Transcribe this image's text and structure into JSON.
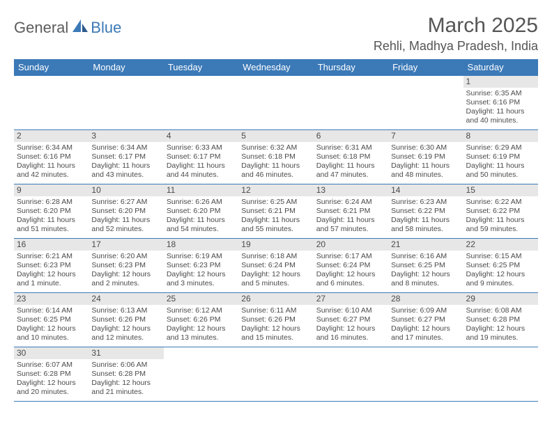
{
  "logo": {
    "part1": "General",
    "part2": "Blue"
  },
  "title": "March 2025",
  "location": "Rehli, Madhya Pradesh, India",
  "colors": {
    "header_bg": "#3b79b7",
    "header_text": "#ffffff",
    "border": "#3b79b7",
    "daynum_bg": "#e7e7e7",
    "body_text": "#4a4a4a",
    "title_text": "#555555"
  },
  "weekdays": [
    "Sunday",
    "Monday",
    "Tuesday",
    "Wednesday",
    "Thursday",
    "Friday",
    "Saturday"
  ],
  "weeks": [
    [
      {
        "n": "",
        "sr": "",
        "ss": "",
        "dl": ""
      },
      {
        "n": "",
        "sr": "",
        "ss": "",
        "dl": ""
      },
      {
        "n": "",
        "sr": "",
        "ss": "",
        "dl": ""
      },
      {
        "n": "",
        "sr": "",
        "ss": "",
        "dl": ""
      },
      {
        "n": "",
        "sr": "",
        "ss": "",
        "dl": ""
      },
      {
        "n": "",
        "sr": "",
        "ss": "",
        "dl": ""
      },
      {
        "n": "1",
        "sr": "Sunrise: 6:35 AM",
        "ss": "Sunset: 6:16 PM",
        "dl": "Daylight: 11 hours and 40 minutes."
      }
    ],
    [
      {
        "n": "2",
        "sr": "Sunrise: 6:34 AM",
        "ss": "Sunset: 6:16 PM",
        "dl": "Daylight: 11 hours and 42 minutes."
      },
      {
        "n": "3",
        "sr": "Sunrise: 6:34 AM",
        "ss": "Sunset: 6:17 PM",
        "dl": "Daylight: 11 hours and 43 minutes."
      },
      {
        "n": "4",
        "sr": "Sunrise: 6:33 AM",
        "ss": "Sunset: 6:17 PM",
        "dl": "Daylight: 11 hours and 44 minutes."
      },
      {
        "n": "5",
        "sr": "Sunrise: 6:32 AM",
        "ss": "Sunset: 6:18 PM",
        "dl": "Daylight: 11 hours and 46 minutes."
      },
      {
        "n": "6",
        "sr": "Sunrise: 6:31 AM",
        "ss": "Sunset: 6:18 PM",
        "dl": "Daylight: 11 hours and 47 minutes."
      },
      {
        "n": "7",
        "sr": "Sunrise: 6:30 AM",
        "ss": "Sunset: 6:19 PM",
        "dl": "Daylight: 11 hours and 48 minutes."
      },
      {
        "n": "8",
        "sr": "Sunrise: 6:29 AM",
        "ss": "Sunset: 6:19 PM",
        "dl": "Daylight: 11 hours and 50 minutes."
      }
    ],
    [
      {
        "n": "9",
        "sr": "Sunrise: 6:28 AM",
        "ss": "Sunset: 6:20 PM",
        "dl": "Daylight: 11 hours and 51 minutes."
      },
      {
        "n": "10",
        "sr": "Sunrise: 6:27 AM",
        "ss": "Sunset: 6:20 PM",
        "dl": "Daylight: 11 hours and 52 minutes."
      },
      {
        "n": "11",
        "sr": "Sunrise: 6:26 AM",
        "ss": "Sunset: 6:20 PM",
        "dl": "Daylight: 11 hours and 54 minutes."
      },
      {
        "n": "12",
        "sr": "Sunrise: 6:25 AM",
        "ss": "Sunset: 6:21 PM",
        "dl": "Daylight: 11 hours and 55 minutes."
      },
      {
        "n": "13",
        "sr": "Sunrise: 6:24 AM",
        "ss": "Sunset: 6:21 PM",
        "dl": "Daylight: 11 hours and 57 minutes."
      },
      {
        "n": "14",
        "sr": "Sunrise: 6:23 AM",
        "ss": "Sunset: 6:22 PM",
        "dl": "Daylight: 11 hours and 58 minutes."
      },
      {
        "n": "15",
        "sr": "Sunrise: 6:22 AM",
        "ss": "Sunset: 6:22 PM",
        "dl": "Daylight: 11 hours and 59 minutes."
      }
    ],
    [
      {
        "n": "16",
        "sr": "Sunrise: 6:21 AM",
        "ss": "Sunset: 6:23 PM",
        "dl": "Daylight: 12 hours and 1 minute."
      },
      {
        "n": "17",
        "sr": "Sunrise: 6:20 AM",
        "ss": "Sunset: 6:23 PM",
        "dl": "Daylight: 12 hours and 2 minutes."
      },
      {
        "n": "18",
        "sr": "Sunrise: 6:19 AM",
        "ss": "Sunset: 6:23 PM",
        "dl": "Daylight: 12 hours and 3 minutes."
      },
      {
        "n": "19",
        "sr": "Sunrise: 6:18 AM",
        "ss": "Sunset: 6:24 PM",
        "dl": "Daylight: 12 hours and 5 minutes."
      },
      {
        "n": "20",
        "sr": "Sunrise: 6:17 AM",
        "ss": "Sunset: 6:24 PM",
        "dl": "Daylight: 12 hours and 6 minutes."
      },
      {
        "n": "21",
        "sr": "Sunrise: 6:16 AM",
        "ss": "Sunset: 6:25 PM",
        "dl": "Daylight: 12 hours and 8 minutes."
      },
      {
        "n": "22",
        "sr": "Sunrise: 6:15 AM",
        "ss": "Sunset: 6:25 PM",
        "dl": "Daylight: 12 hours and 9 minutes."
      }
    ],
    [
      {
        "n": "23",
        "sr": "Sunrise: 6:14 AM",
        "ss": "Sunset: 6:25 PM",
        "dl": "Daylight: 12 hours and 10 minutes."
      },
      {
        "n": "24",
        "sr": "Sunrise: 6:13 AM",
        "ss": "Sunset: 6:26 PM",
        "dl": "Daylight: 12 hours and 12 minutes."
      },
      {
        "n": "25",
        "sr": "Sunrise: 6:12 AM",
        "ss": "Sunset: 6:26 PM",
        "dl": "Daylight: 12 hours and 13 minutes."
      },
      {
        "n": "26",
        "sr": "Sunrise: 6:11 AM",
        "ss": "Sunset: 6:26 PM",
        "dl": "Daylight: 12 hours and 15 minutes."
      },
      {
        "n": "27",
        "sr": "Sunrise: 6:10 AM",
        "ss": "Sunset: 6:27 PM",
        "dl": "Daylight: 12 hours and 16 minutes."
      },
      {
        "n": "28",
        "sr": "Sunrise: 6:09 AM",
        "ss": "Sunset: 6:27 PM",
        "dl": "Daylight: 12 hours and 17 minutes."
      },
      {
        "n": "29",
        "sr": "Sunrise: 6:08 AM",
        "ss": "Sunset: 6:28 PM",
        "dl": "Daylight: 12 hours and 19 minutes."
      }
    ],
    [
      {
        "n": "30",
        "sr": "Sunrise: 6:07 AM",
        "ss": "Sunset: 6:28 PM",
        "dl": "Daylight: 12 hours and 20 minutes."
      },
      {
        "n": "31",
        "sr": "Sunrise: 6:06 AM",
        "ss": "Sunset: 6:28 PM",
        "dl": "Daylight: 12 hours and 21 minutes."
      },
      {
        "n": "",
        "sr": "",
        "ss": "",
        "dl": ""
      },
      {
        "n": "",
        "sr": "",
        "ss": "",
        "dl": ""
      },
      {
        "n": "",
        "sr": "",
        "ss": "",
        "dl": ""
      },
      {
        "n": "",
        "sr": "",
        "ss": "",
        "dl": ""
      },
      {
        "n": "",
        "sr": "",
        "ss": "",
        "dl": ""
      }
    ]
  ]
}
